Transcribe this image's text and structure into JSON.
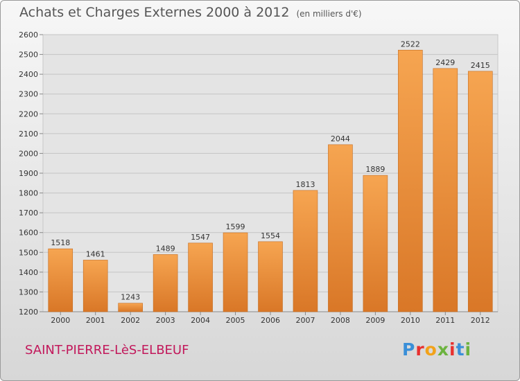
{
  "chart_data": {
    "type": "bar",
    "title": "Achats et Charges Externes 2000 à 2012",
    "subtitle": "(en milliers d'€)",
    "categories": [
      "2000",
      "2001",
      "2002",
      "2003",
      "2004",
      "2005",
      "2006",
      "2007",
      "2008",
      "2009",
      "2010",
      "2011",
      "2012"
    ],
    "values": [
      1518,
      1461,
      1243,
      1489,
      1547,
      1599,
      1554,
      1813,
      2044,
      1889,
      2522,
      2429,
      2415
    ],
    "data_labels": [
      "1518",
      "1461",
      "1243",
      "1489",
      "1547",
      "1599",
      "1554",
      "1813",
      "2044",
      "1889",
      "2522",
      "2429",
      "2415"
    ],
    "y_ticks": [
      "1200",
      "1300",
      "1400",
      "1500",
      "1600",
      "1700",
      "1800",
      "1900",
      "2000",
      "2100",
      "2200",
      "2300",
      "2400",
      "2500",
      "2600"
    ],
    "ylim": [
      1200,
      2600
    ],
    "grid": true,
    "bar_color": "#f09a40",
    "bar_color_dark": "#d9782a"
  },
  "footer": {
    "commune": "SAINT-PIERRE-LèS-ELBEUF",
    "logo_letters": [
      "P",
      "r",
      "o",
      "x",
      "i",
      "t",
      "i"
    ],
    "logo_colors": [
      "#3a8fd8",
      "#e8312f",
      "#f2a21a",
      "#6cb33f",
      "#e8312f",
      "#3a8fd8",
      "#6cb33f"
    ]
  }
}
